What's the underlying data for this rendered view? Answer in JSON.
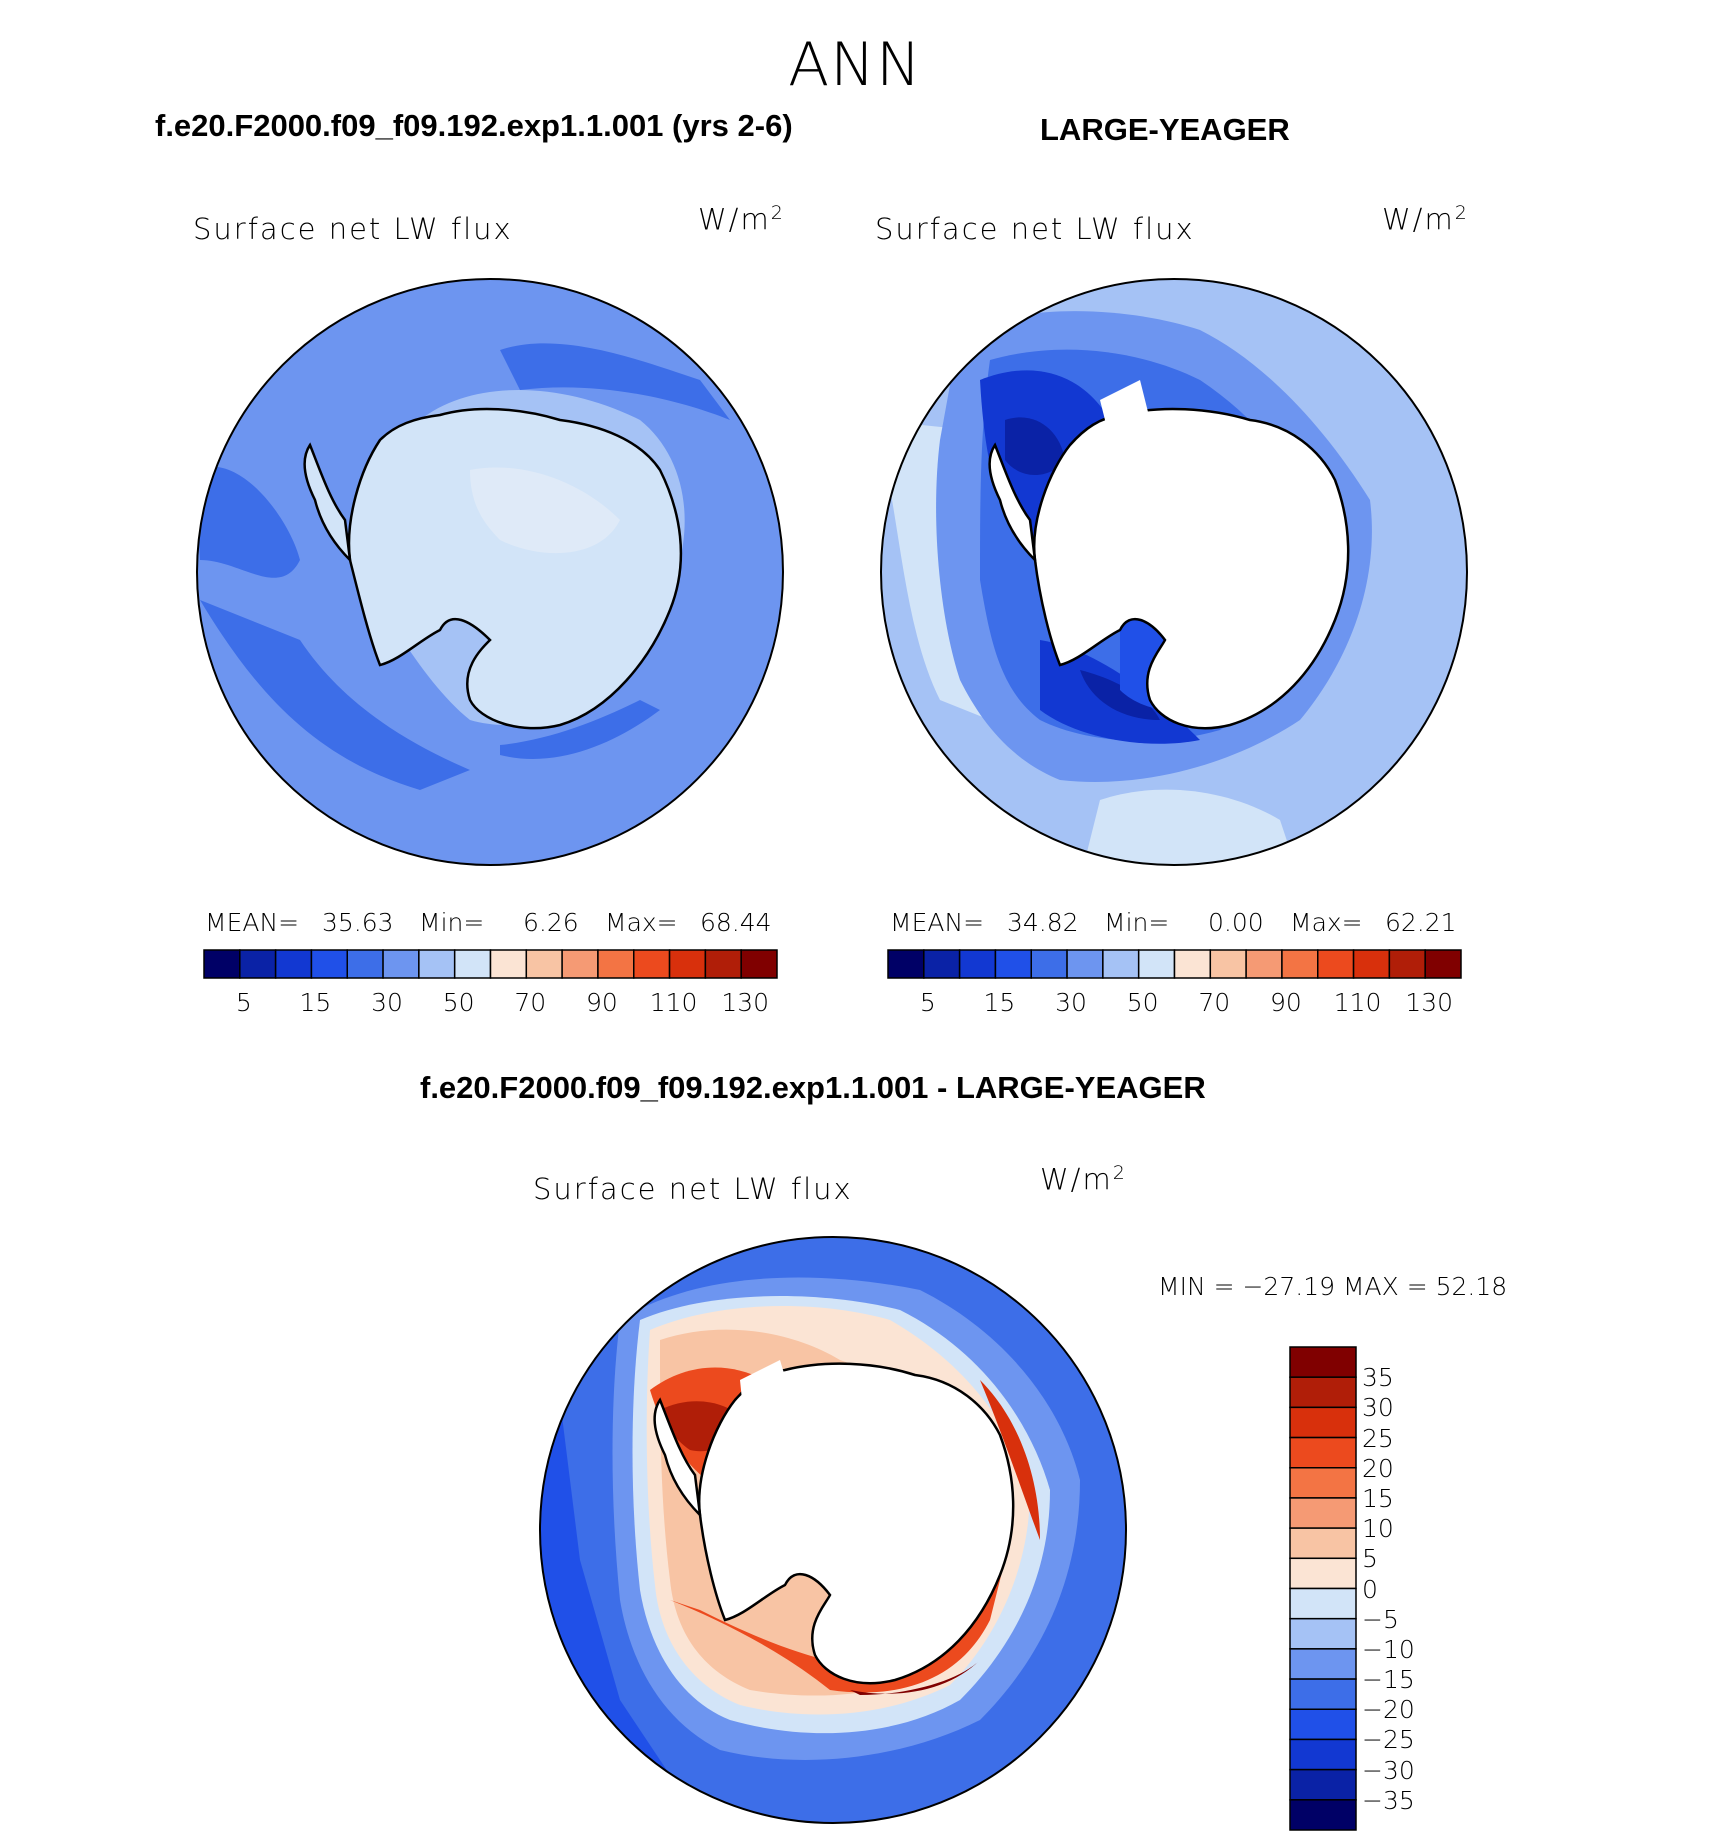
{
  "season": "ANN",
  "panels": [
    {
      "id": "test",
      "title": "f.e20.F2000.f09_f09.192.exp1.1.001 (yrs 2-6)",
      "variable": "Surface net LW flux",
      "units_base": "W/m",
      "units_exp": "2",
      "stats": {
        "mean_label": "MEAN=",
        "mean": "35.63",
        "min_label": "Min=",
        "min": "6.26",
        "max_label": "Max=",
        "max": "68.44"
      },
      "colorbar_labels": [
        "5",
        "15",
        "30",
        "50",
        "70",
        "90",
        "110",
        "130"
      ]
    },
    {
      "id": "obs",
      "title": "LARGE-YEAGER",
      "variable": "Surface net LW flux",
      "units_base": "W/m",
      "units_exp": "2",
      "stats": {
        "mean_label": "MEAN=",
        "mean": "34.82",
        "min_label": "Min=",
        "min": "0.00",
        "max_label": "Max=",
        "max": "62.21"
      },
      "colorbar_labels": [
        "5",
        "15",
        "30",
        "50",
        "70",
        "90",
        "110",
        "130"
      ]
    }
  ],
  "diff": {
    "title": "f.e20.F2000.f09_f09.192.exp1.1.001 - LARGE-YEAGER",
    "variable": "Surface net LW flux",
    "units_base": "W/m",
    "units_exp": "2",
    "minmax": "MIN = −27.19  MAX =   52.18",
    "colorbar_labels": [
      "35",
      "30",
      "25",
      "20",
      "15",
      "10",
      "5",
      "0",
      "−5",
      "−10",
      "−15",
      "−20",
      "−25",
      "−30",
      "−35"
    ]
  },
  "colors": {
    "abs_scale": [
      "#000066",
      "#0a22a6",
      "#1238d2",
      "#2050e8",
      "#3d6ee8",
      "#6d95f0",
      "#a5c2f5",
      "#d2e4f8",
      "#fbe4d4",
      "#f8c4a4",
      "#f59a74",
      "#f37444",
      "#ec4a1e",
      "#d8300c",
      "#b01e08",
      "#800000"
    ],
    "diff_scale": [
      "#000066",
      "#0a22a6",
      "#1238d2",
      "#2050e8",
      "#3d6ee8",
      "#6d95f0",
      "#a5c2f5",
      "#d2e4f8",
      "#fbe4d4",
      "#f8c4a4",
      "#f59a74",
      "#f37444",
      "#ec4a1e",
      "#d8300c",
      "#b01e08",
      "#800000"
    ],
    "land": "#ffffff",
    "coast": "#000000"
  }
}
